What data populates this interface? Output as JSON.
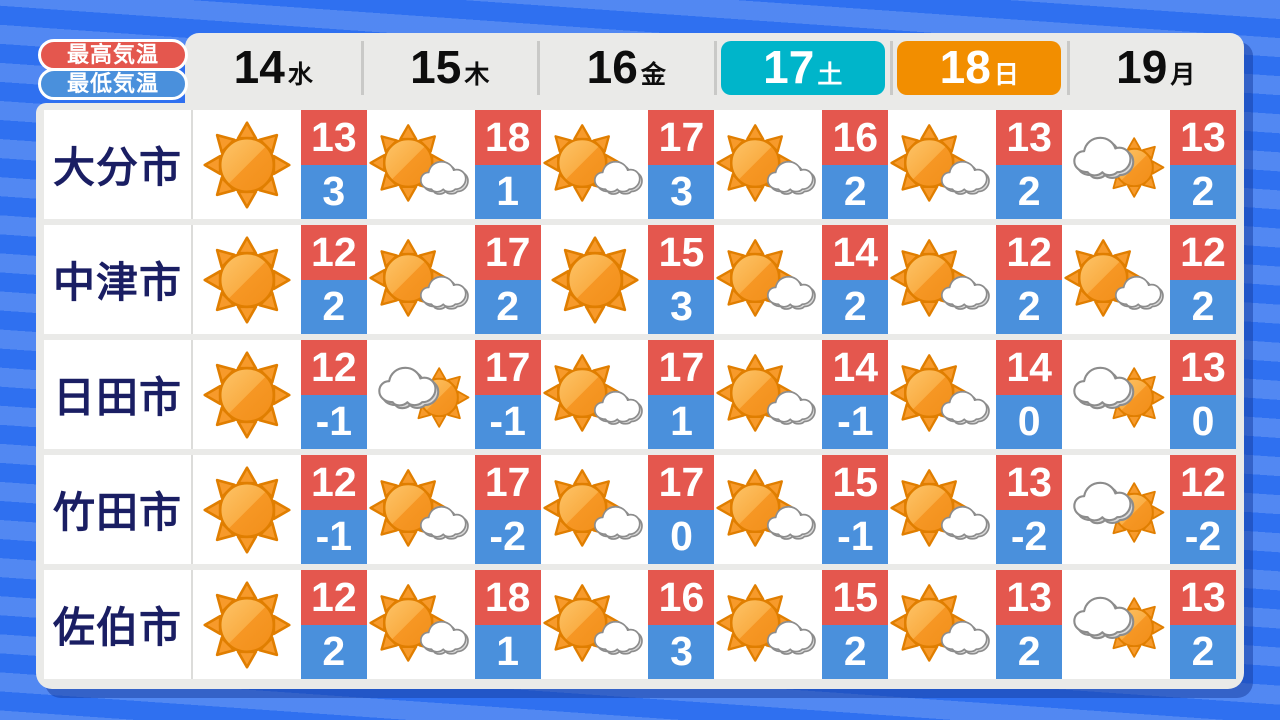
{
  "legend": {
    "high_label": "最高気温",
    "low_label": "最低気温"
  },
  "header": [
    {
      "date": "14",
      "dow": "水",
      "highlight": ""
    },
    {
      "date": "15",
      "dow": "木",
      "highlight": ""
    },
    {
      "date": "16",
      "dow": "金",
      "highlight": ""
    },
    {
      "date": "17",
      "dow": "土",
      "highlight": "sat"
    },
    {
      "date": "18",
      "dow": "日",
      "highlight": "sun"
    },
    {
      "date": "19",
      "dow": "月",
      "highlight": ""
    }
  ],
  "rows": [
    {
      "id": "oita",
      "name": "大分市",
      "days": [
        {
          "icon": "sun",
          "high": "13",
          "low": "3"
        },
        {
          "icon": "sun-cloud",
          "high": "18",
          "low": "1"
        },
        {
          "icon": "sun-cloud",
          "high": "17",
          "low": "3"
        },
        {
          "icon": "sun-cloud",
          "high": "16",
          "low": "2"
        },
        {
          "icon": "sun-cloud",
          "high": "13",
          "low": "2"
        },
        {
          "icon": "cloud-sun",
          "high": "13",
          "low": "2"
        }
      ]
    },
    {
      "id": "nakatsu",
      "name": "中津市",
      "days": [
        {
          "icon": "sun",
          "high": "12",
          "low": "2"
        },
        {
          "icon": "sun-cloud",
          "high": "17",
          "low": "2"
        },
        {
          "icon": "sun",
          "high": "15",
          "low": "3"
        },
        {
          "icon": "sun-cloud",
          "high": "14",
          "low": "2"
        },
        {
          "icon": "sun-cloud",
          "high": "12",
          "low": "2"
        },
        {
          "icon": "sun-cloud",
          "high": "12",
          "low": "2"
        }
      ]
    },
    {
      "id": "hita",
      "name": "日田市",
      "days": [
        {
          "icon": "sun",
          "high": "12",
          "low": "-1"
        },
        {
          "icon": "cloud-sun",
          "high": "17",
          "low": "-1"
        },
        {
          "icon": "sun-cloud",
          "high": "17",
          "low": "1"
        },
        {
          "icon": "sun-cloud",
          "high": "14",
          "low": "-1"
        },
        {
          "icon": "sun-cloud",
          "high": "14",
          "low": "0"
        },
        {
          "icon": "cloud-sun",
          "high": "13",
          "low": "0"
        }
      ]
    },
    {
      "id": "taketa",
      "name": "竹田市",
      "days": [
        {
          "icon": "sun",
          "high": "12",
          "low": "-1"
        },
        {
          "icon": "sun-cloud",
          "high": "17",
          "low": "-2"
        },
        {
          "icon": "sun-cloud",
          "high": "17",
          "low": "0"
        },
        {
          "icon": "sun-cloud",
          "high": "15",
          "low": "-1"
        },
        {
          "icon": "sun-cloud",
          "high": "13",
          "low": "-2"
        },
        {
          "icon": "cloud-sun",
          "high": "12",
          "low": "-2"
        }
      ]
    },
    {
      "id": "saiki",
      "name": "佐伯市",
      "days": [
        {
          "icon": "sun",
          "high": "12",
          "low": "2"
        },
        {
          "icon": "sun-cloud",
          "high": "18",
          "low": "1"
        },
        {
          "icon": "sun-cloud",
          "high": "16",
          "low": "3"
        },
        {
          "icon": "sun-cloud",
          "high": "15",
          "low": "2"
        },
        {
          "icon": "sun-cloud",
          "high": "13",
          "low": "2"
        },
        {
          "icon": "cloud-sun",
          "high": "13",
          "low": "2"
        }
      ]
    }
  ],
  "colors": {
    "max_temp_red": "#E4574E",
    "min_temp_blue": "#4A90DC",
    "saturday_cyan": "#00B5CA",
    "sunday_orange": "#F28E00",
    "city_navy": "#1A1E63",
    "background_blue": "#2F70F0",
    "card_gray": "#EAEAE8"
  },
  "chart_data": {
    "type": "table",
    "columns": [
      "14水",
      "15木",
      "16金",
      "17土",
      "18日",
      "19月"
    ],
    "legend": [
      "最高気温",
      "最低気温"
    ],
    "rows": [
      {
        "label": "大分市",
        "weather": [
          "晴れ",
          "晴れ時々曇り",
          "晴れ時々曇り",
          "晴れ時々曇り",
          "晴れ時々曇り",
          "曇り時々晴れ"
        ],
        "high": [
          13,
          18,
          17,
          16,
          13,
          13
        ],
        "low": [
          3,
          1,
          3,
          2,
          2,
          2
        ]
      },
      {
        "label": "中津市",
        "weather": [
          "晴れ",
          "晴れ時々曇り",
          "晴れ",
          "晴れ時々曇り",
          "晴れ時々曇り",
          "晴れ時々曇り"
        ],
        "high": [
          12,
          17,
          15,
          14,
          12,
          12
        ],
        "low": [
          2,
          2,
          3,
          2,
          2,
          2
        ]
      },
      {
        "label": "日田市",
        "weather": [
          "晴れ",
          "曇り時々晴れ",
          "晴れ時々曇り",
          "晴れ時々曇り",
          "晴れ時々曇り",
          "曇り時々晴れ"
        ],
        "high": [
          12,
          17,
          17,
          14,
          14,
          13
        ],
        "low": [
          -1,
          -1,
          1,
          -1,
          0,
          0
        ]
      },
      {
        "label": "竹田市",
        "weather": [
          "晴れ",
          "晴れ時々曇り",
          "晴れ時々曇り",
          "晴れ時々曇り",
          "晴れ時々曇り",
          "曇り時々晴れ"
        ],
        "high": [
          12,
          17,
          17,
          15,
          13,
          12
        ],
        "low": [
          -1,
          -2,
          0,
          -1,
          -2,
          -2
        ]
      },
      {
        "label": "佐伯市",
        "weather": [
          "晴れ",
          "晴れ時々曇り",
          "晴れ時々曇り",
          "晴れ時々曇り",
          "晴れ時々曇り",
          "曇り時々晴れ"
        ],
        "high": [
          12,
          18,
          16,
          15,
          13,
          13
        ],
        "low": [
          2,
          1,
          3,
          2,
          2,
          2
        ]
      }
    ]
  }
}
